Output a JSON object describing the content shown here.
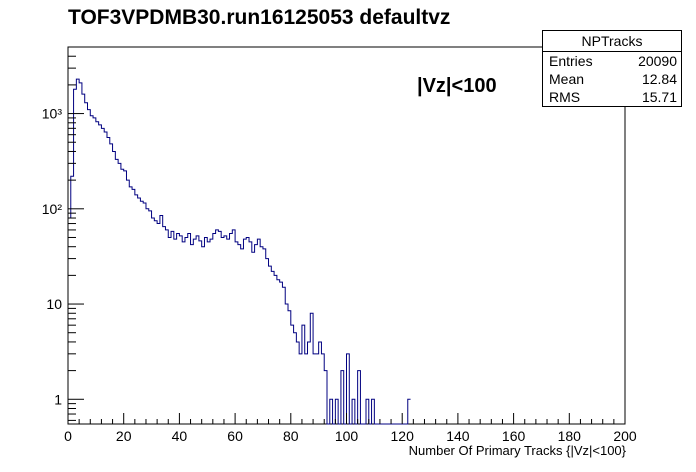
{
  "title": "TOF3VPDMB30.run16125053 defaultvz",
  "annotation": "|Vz|<100",
  "stats": {
    "name": "NPTracks",
    "rows": [
      {
        "label": "Entries",
        "value": "20090"
      },
      {
        "label": "Mean",
        "value": "12.84"
      },
      {
        "label": "RMS",
        "value": "15.71"
      }
    ]
  },
  "chart_data": {
    "type": "histogram",
    "title": "TOF3VPDMB30.run16125053 defaultvz",
    "xlabel": "Number Of Primary Tracks {|Vz|<100}",
    "ylabel": "",
    "xlim": [
      0,
      200
    ],
    "ylim": [
      0.55,
      5000
    ],
    "yscale": "log",
    "bin_width": 1,
    "grid": false,
    "legend": "none",
    "line_color": "#000080",
    "x_ticks": [
      0,
      20,
      40,
      60,
      80,
      100,
      120,
      140,
      160,
      180,
      200
    ],
    "x_tick_labels": [
      "0",
      "20",
      "40",
      "60",
      "80",
      "100",
      "120",
      "140",
      "160",
      "180",
      "200"
    ],
    "y_ticks": [
      1,
      10,
      100,
      1000
    ],
    "y_tick_labels": [
      "1",
      "10",
      "10²",
      "10³"
    ],
    "series": [
      {
        "x": [
          0,
          1,
          2,
          3,
          4,
          5,
          6,
          7,
          8,
          9,
          10,
          11,
          12,
          13,
          14,
          15,
          16,
          17,
          18,
          19,
          20,
          21,
          22,
          23,
          24,
          25,
          26,
          27,
          28,
          29,
          30,
          31,
          32,
          33,
          34,
          35,
          36,
          37,
          38,
          39,
          40,
          41,
          42,
          43,
          44,
          45,
          46,
          47,
          48,
          49,
          50,
          51,
          52,
          53,
          54,
          55,
          56,
          57,
          58,
          59,
          60,
          61,
          62,
          63,
          64,
          65,
          66,
          67,
          68,
          69,
          70,
          71,
          72,
          73,
          74,
          75,
          76,
          77,
          78,
          79,
          80,
          81,
          82,
          83,
          84,
          85,
          86,
          87,
          88,
          89,
          90,
          91,
          92,
          93,
          94,
          95,
          96,
          97,
          98,
          99,
          100,
          101,
          102,
          103,
          104,
          105,
          106,
          107,
          108,
          109,
          110,
          111,
          112,
          113,
          114,
          115,
          116,
          117,
          118,
          119,
          120,
          121,
          122
        ],
        "y": [
          80,
          220,
          1800,
          2300,
          2100,
          1600,
          1300,
          1100,
          950,
          900,
          820,
          760,
          700,
          640,
          560,
          480,
          400,
          330,
          300,
          260,
          250,
          200,
          170,
          160,
          140,
          130,
          120,
          115,
          100,
          95,
          80,
          75,
          70,
          85,
          65,
          60,
          50,
          58,
          48,
          55,
          52,
          45,
          50,
          55,
          42,
          48,
          52,
          46,
          40,
          50,
          45,
          48,
          55,
          60,
          58,
          50,
          52,
          48,
          55,
          60,
          45,
          42,
          38,
          48,
          50,
          45,
          35,
          42,
          48,
          40,
          38,
          30,
          25,
          22,
          20,
          18,
          17,
          15,
          10,
          8.5,
          6,
          5,
          4,
          3,
          6,
          3,
          4,
          8,
          3,
          3,
          4,
          3,
          2,
          0,
          1,
          0,
          1,
          0,
          2,
          0,
          3,
          0,
          1,
          0,
          2,
          0,
          0,
          1,
          0,
          1,
          0,
          0,
          0,
          0,
          0,
          0,
          0,
          0,
          0,
          0,
          0,
          0,
          1
        ]
      }
    ]
  }
}
